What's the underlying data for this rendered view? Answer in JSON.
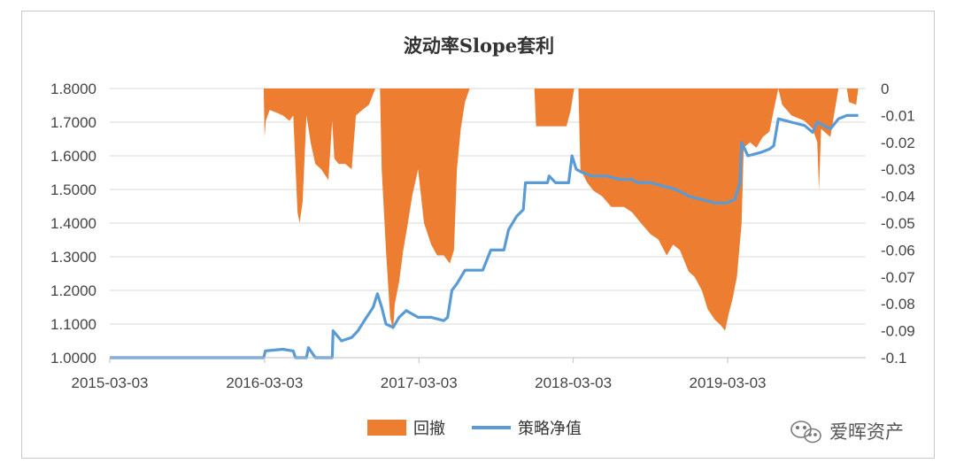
{
  "chart_data": {
    "type": "area+line",
    "title": "波动率Slope套利",
    "x_ticks": [
      "2015-03-03",
      "2016-03-03",
      "2017-03-03",
      "2018-03-03",
      "2019-03-03"
    ],
    "y_left_ticks": [
      "1.8000",
      "1.7000",
      "1.6000",
      "1.5000",
      "1.4000",
      "1.3000",
      "1.2000",
      "1.1000",
      "1.0000"
    ],
    "y_right_ticks": [
      "0",
      "-0.01",
      "-0.02",
      "-0.03",
      "-0.04",
      "-0.05",
      "-0.06",
      "-0.07",
      "-0.08",
      "-0.09",
      "-0.1"
    ],
    "y_left_range": [
      1.0,
      1.8
    ],
    "y_right_range": [
      -0.1,
      0
    ],
    "legend_position": "bottom",
    "series": [
      {
        "name": "回撤",
        "type": "area",
        "axis": "right",
        "color": "#ED7D31",
        "points": [
          [
            "2015-03-03",
            0
          ],
          [
            "2016-03-01",
            0
          ],
          [
            "2016-03-03",
            -0.018
          ],
          [
            "2016-03-06",
            -0.012
          ],
          [
            "2016-03-15",
            -0.008
          ],
          [
            "2016-04-01",
            -0.009
          ],
          [
            "2016-04-15",
            -0.01
          ],
          [
            "2016-05-01",
            -0.012
          ],
          [
            "2016-05-10",
            -0.01
          ],
          [
            "2016-05-20",
            -0.046
          ],
          [
            "2016-05-25",
            -0.05
          ],
          [
            "2016-06-01",
            -0.042
          ],
          [
            "2016-06-10",
            -0.01
          ],
          [
            "2016-06-20",
            -0.02
          ],
          [
            "2016-07-01",
            -0.028
          ],
          [
            "2016-07-15",
            -0.03
          ],
          [
            "2016-08-01",
            -0.034
          ],
          [
            "2016-08-10",
            -0.012
          ],
          [
            "2016-08-15",
            -0.026
          ],
          [
            "2016-08-25",
            -0.028
          ],
          [
            "2016-09-10",
            -0.028
          ],
          [
            "2016-09-25",
            -0.03
          ],
          [
            "2016-10-05",
            -0.01
          ],
          [
            "2016-10-20",
            -0.008
          ],
          [
            "2016-11-05",
            -0.006
          ],
          [
            "2016-11-15",
            -0.002
          ],
          [
            "2016-11-20",
            0
          ],
          [
            "2016-12-01",
            0
          ],
          [
            "2016-12-05",
            -0.03
          ],
          [
            "2016-12-15",
            -0.06
          ],
          [
            "2016-12-25",
            -0.085
          ],
          [
            "2017-01-01",
            -0.09
          ],
          [
            "2017-01-05",
            -0.08
          ],
          [
            "2017-01-15",
            -0.072
          ],
          [
            "2017-01-25",
            -0.06
          ],
          [
            "2017-02-05",
            -0.05
          ],
          [
            "2017-02-15",
            -0.04
          ],
          [
            "2017-03-01",
            -0.03
          ],
          [
            "2017-03-15",
            -0.05
          ],
          [
            "2017-04-01",
            -0.058
          ],
          [
            "2017-04-15",
            -0.062
          ],
          [
            "2017-05-01",
            -0.062
          ],
          [
            "2017-05-15",
            -0.065
          ],
          [
            "2017-05-25",
            -0.06
          ],
          [
            "2017-06-01",
            -0.03
          ],
          [
            "2017-06-10",
            -0.015
          ],
          [
            "2017-06-20",
            -0.005
          ],
          [
            "2017-07-01",
            0
          ],
          [
            "2017-12-01",
            0
          ],
          [
            "2017-12-05",
            -0.014
          ],
          [
            "2018-02-15",
            -0.014
          ],
          [
            "2018-02-25",
            -0.008
          ],
          [
            "2018-03-05",
            0
          ],
          [
            "2018-03-15",
            0
          ],
          [
            "2018-03-20",
            -0.03
          ],
          [
            "2018-04-05",
            -0.035
          ],
          [
            "2018-04-20",
            -0.038
          ],
          [
            "2018-05-10",
            -0.04
          ],
          [
            "2018-06-01",
            -0.044
          ],
          [
            "2018-07-01",
            -0.044
          ],
          [
            "2018-07-20",
            -0.046
          ],
          [
            "2018-08-10",
            -0.05
          ],
          [
            "2018-09-01",
            -0.054
          ],
          [
            "2018-09-20",
            -0.056
          ],
          [
            "2018-10-10",
            -0.062
          ],
          [
            "2018-10-25",
            -0.058
          ],
          [
            "2018-11-10",
            -0.06
          ],
          [
            "2018-12-01",
            -0.068
          ],
          [
            "2018-12-15",
            -0.07
          ],
          [
            "2019-01-01",
            -0.075
          ],
          [
            "2019-01-15",
            -0.082
          ],
          [
            "2019-02-01",
            -0.086
          ],
          [
            "2019-02-15",
            -0.088
          ],
          [
            "2019-02-25",
            -0.09
          ],
          [
            "2019-03-05",
            -0.084
          ],
          [
            "2019-03-15",
            -0.078
          ],
          [
            "2019-03-25",
            -0.07
          ],
          [
            "2019-04-05",
            -0.05
          ],
          [
            "2019-04-10",
            -0.022
          ],
          [
            "2019-04-25",
            -0.02
          ],
          [
            "2019-05-10",
            -0.022
          ],
          [
            "2019-05-25",
            -0.018
          ],
          [
            "2019-06-10",
            -0.016
          ],
          [
            "2019-06-20",
            -0.008
          ],
          [
            "2019-07-01",
            0
          ],
          [
            "2019-07-10",
            -0.006
          ],
          [
            "2019-08-01",
            -0.01
          ],
          [
            "2019-09-01",
            -0.012
          ],
          [
            "2019-09-20",
            -0.015
          ],
          [
            "2019-10-01",
            -0.02
          ],
          [
            "2019-10-05",
            -0.038
          ],
          [
            "2019-10-10",
            -0.015
          ],
          [
            "2019-11-01",
            -0.018
          ],
          [
            "2019-11-20",
            0
          ],
          [
            "2019-12-10",
            0
          ],
          [
            "2019-12-15",
            -0.005
          ],
          [
            "2020-01-01",
            -0.006
          ],
          [
            "2020-01-06",
            0
          ]
        ]
      },
      {
        "name": "策略净值",
        "type": "line",
        "axis": "left",
        "color": "#5B9BD5",
        "points": [
          [
            "2015-03-03",
            1.0
          ],
          [
            "2016-03-01",
            1.0
          ],
          [
            "2016-03-05",
            1.02
          ],
          [
            "2016-04-15",
            1.025
          ],
          [
            "2016-05-10",
            1.02
          ],
          [
            "2016-05-15",
            1.0
          ],
          [
            "2016-06-10",
            1.0
          ],
          [
            "2016-06-15",
            1.03
          ],
          [
            "2016-07-01",
            1.0
          ],
          [
            "2016-08-10",
            1.0
          ],
          [
            "2016-08-12",
            1.08
          ],
          [
            "2016-09-01",
            1.05
          ],
          [
            "2016-09-25",
            1.06
          ],
          [
            "2016-10-10",
            1.08
          ],
          [
            "2016-10-25",
            1.11
          ],
          [
            "2016-11-15",
            1.15
          ],
          [
            "2016-11-25",
            1.19
          ],
          [
            "2016-12-05",
            1.15
          ],
          [
            "2016-12-15",
            1.1
          ],
          [
            "2017-01-01",
            1.09
          ],
          [
            "2017-01-15",
            1.12
          ],
          [
            "2017-02-01",
            1.14
          ],
          [
            "2017-02-15",
            1.13
          ],
          [
            "2017-03-01",
            1.12
          ],
          [
            "2017-04-01",
            1.12
          ],
          [
            "2017-05-01",
            1.11
          ],
          [
            "2017-05-10",
            1.12
          ],
          [
            "2017-05-20",
            1.2
          ],
          [
            "2017-06-01",
            1.22
          ],
          [
            "2017-06-20",
            1.26
          ],
          [
            "2017-07-10",
            1.26
          ],
          [
            "2017-08-01",
            1.26
          ],
          [
            "2017-08-20",
            1.32
          ],
          [
            "2017-09-20",
            1.32
          ],
          [
            "2017-10-01",
            1.38
          ],
          [
            "2017-10-20",
            1.42
          ],
          [
            "2017-11-05",
            1.44
          ],
          [
            "2017-11-10",
            1.52
          ],
          [
            "2017-12-10",
            1.52
          ],
          [
            "2018-01-01",
            1.52
          ],
          [
            "2018-01-05",
            1.54
          ],
          [
            "2018-01-20",
            1.52
          ],
          [
            "2018-02-20",
            1.52
          ],
          [
            "2018-02-28",
            1.6
          ],
          [
            "2018-03-10",
            1.56
          ],
          [
            "2018-03-25",
            1.55
          ],
          [
            "2018-04-15",
            1.54
          ],
          [
            "2018-05-20",
            1.54
          ],
          [
            "2018-06-20",
            1.53
          ],
          [
            "2018-07-20",
            1.53
          ],
          [
            "2018-08-01",
            1.52
          ],
          [
            "2018-09-01",
            1.52
          ],
          [
            "2018-10-01",
            1.51
          ],
          [
            "2018-11-01",
            1.5
          ],
          [
            "2018-12-01",
            1.48
          ],
          [
            "2019-01-01",
            1.47
          ],
          [
            "2019-02-01",
            1.46
          ],
          [
            "2019-03-01",
            1.46
          ],
          [
            "2019-03-20",
            1.47
          ],
          [
            "2019-04-01",
            1.52
          ],
          [
            "2019-04-05",
            1.64
          ],
          [
            "2019-04-20",
            1.6
          ],
          [
            "2019-05-20",
            1.61
          ],
          [
            "2019-06-10",
            1.62
          ],
          [
            "2019-06-20",
            1.63
          ],
          [
            "2019-07-01",
            1.71
          ],
          [
            "2019-08-01",
            1.7
          ],
          [
            "2019-09-01",
            1.69
          ],
          [
            "2019-09-20",
            1.67
          ],
          [
            "2019-10-01",
            1.7
          ],
          [
            "2019-11-01",
            1.68
          ],
          [
            "2019-11-20",
            1.71
          ],
          [
            "2019-12-10",
            1.72
          ],
          [
            "2020-01-06",
            1.72
          ]
        ]
      }
    ]
  },
  "watermark": {
    "text": "爱晖资产",
    "icon": "wechat-icon"
  }
}
